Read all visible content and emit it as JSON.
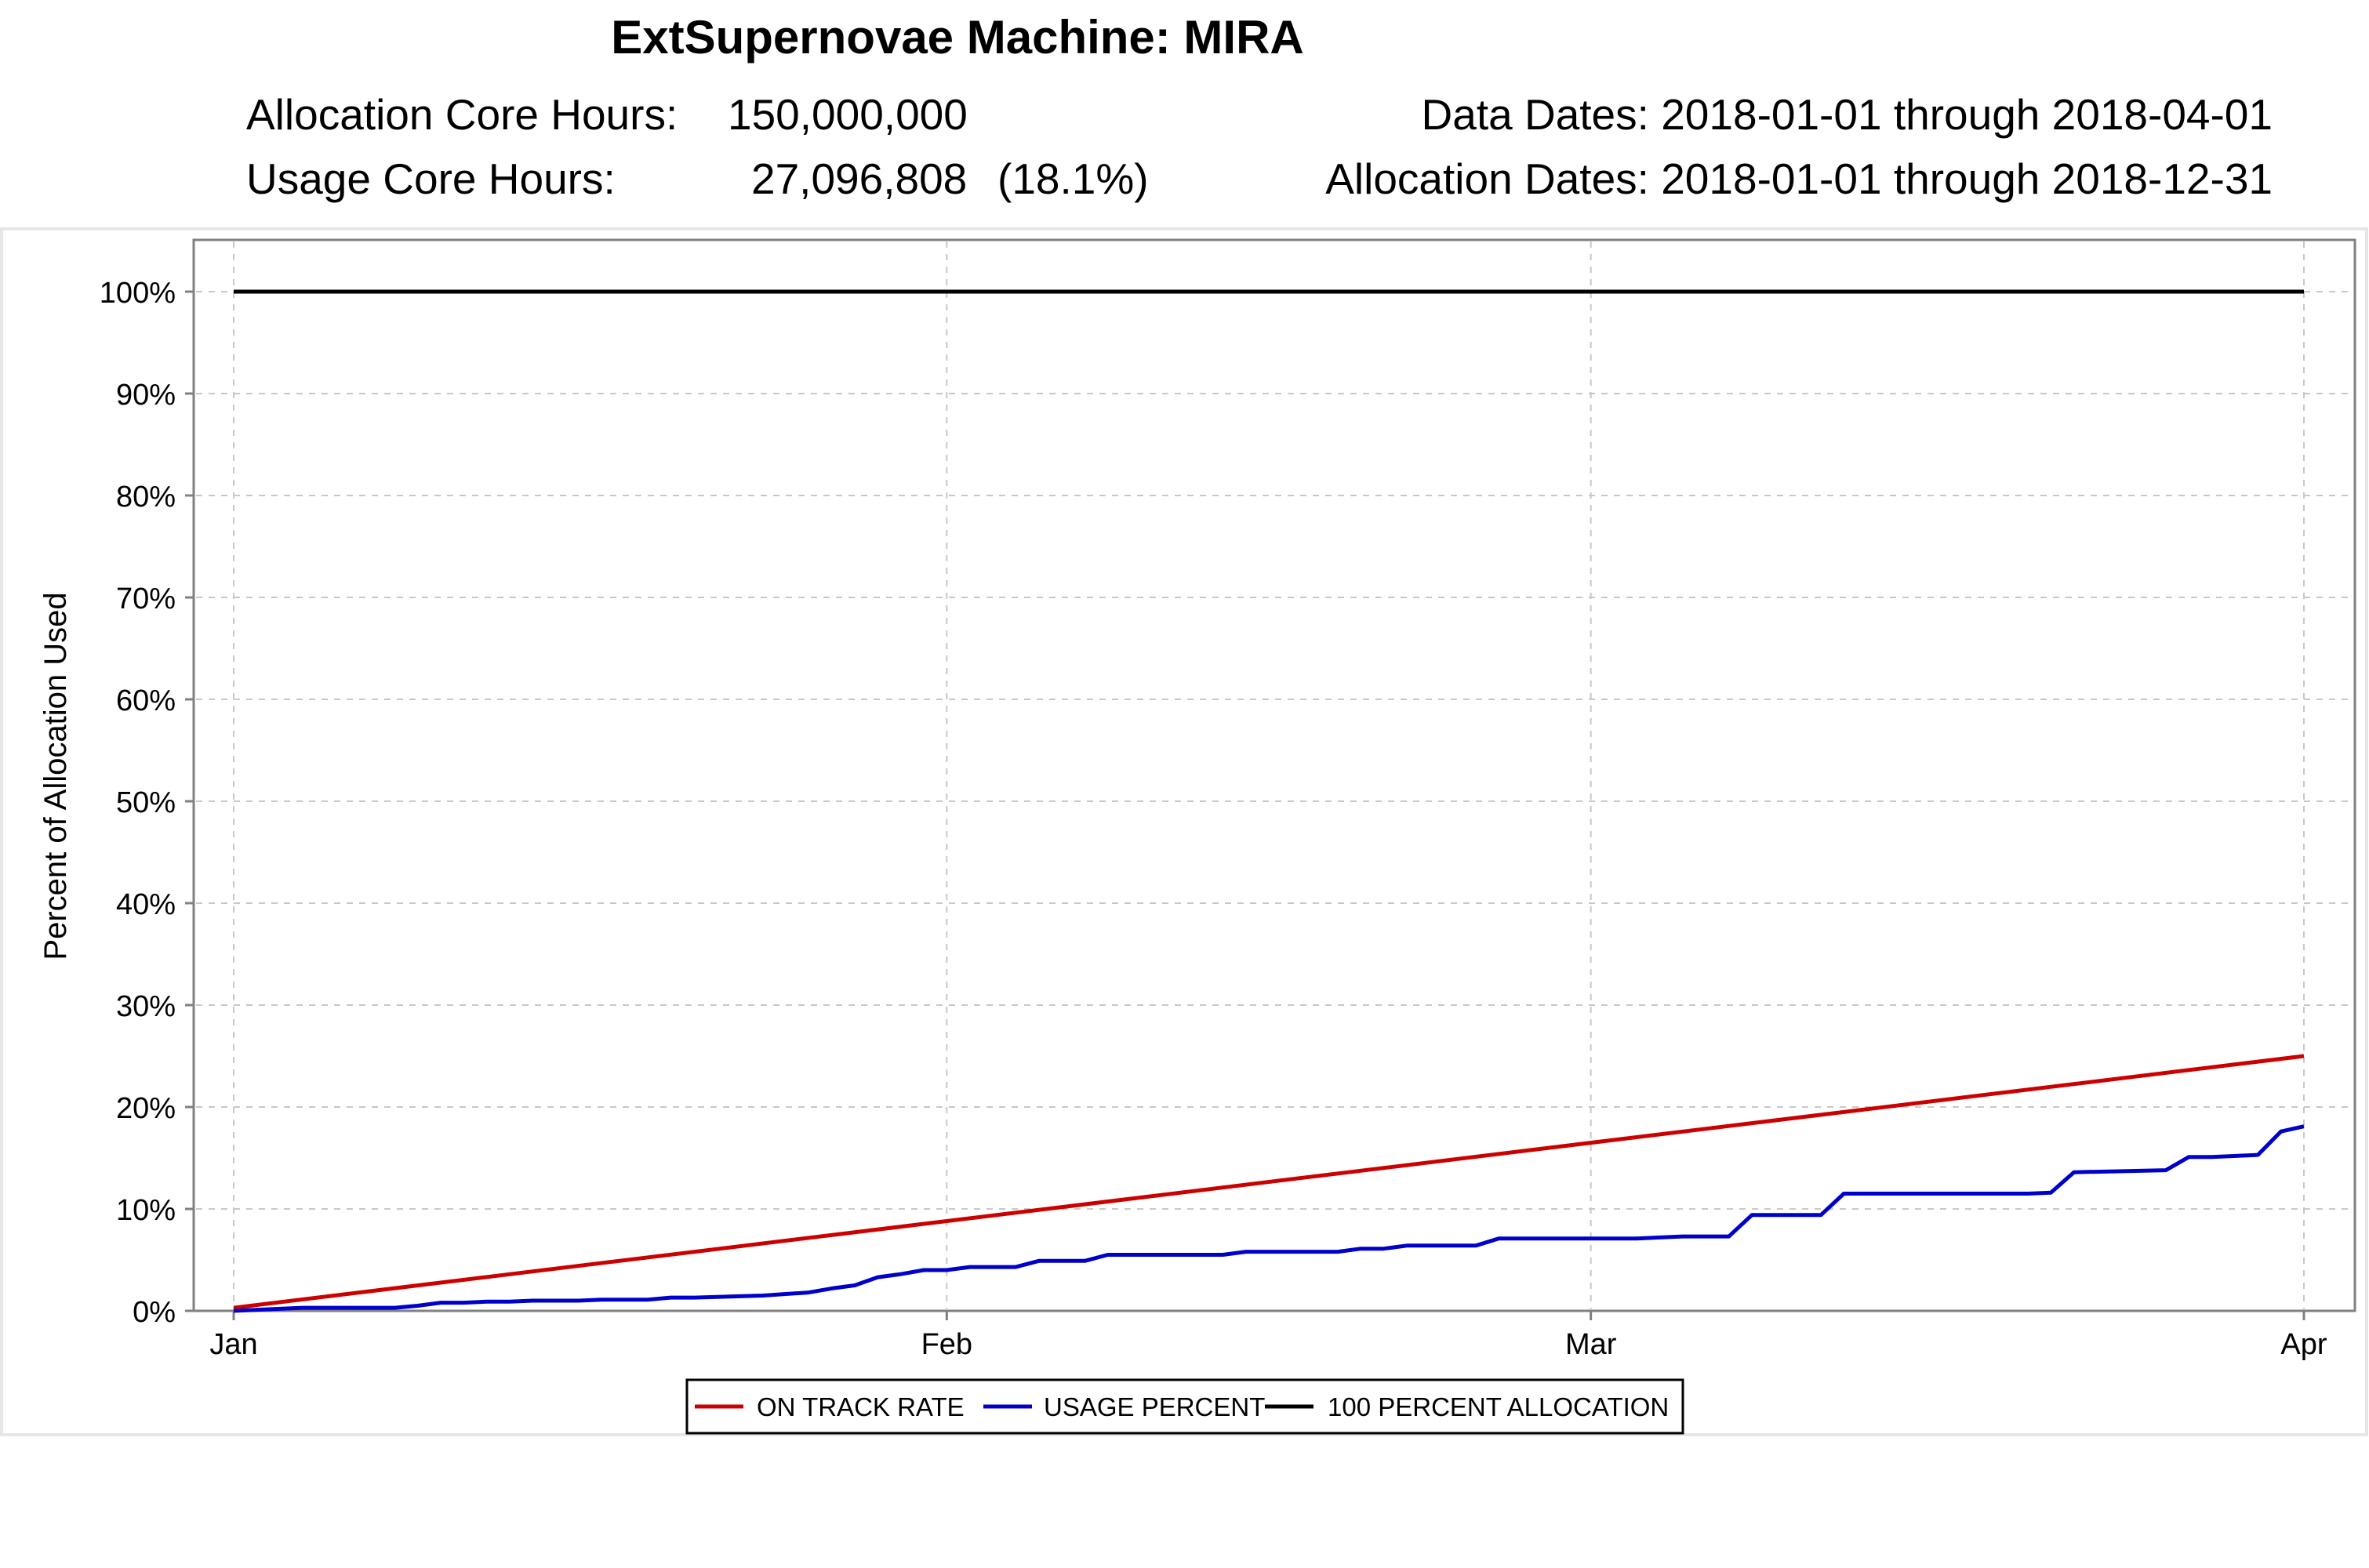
{
  "title": "ExtSupernovae  Machine: MIRA",
  "header": {
    "alloc_label": "Allocation Core Hours:",
    "alloc_value": "150,000,000",
    "usage_label": "Usage Core Hours:",
    "usage_value": "27,096,808",
    "usage_pct": "(18.1%)",
    "data_dates": "Data Dates: 2018-01-01 through 2018-04-01",
    "alloc_dates": "Allocation Dates: 2018-01-01 through 2018-12-31"
  },
  "colors": {
    "on_track": "#cc0000",
    "usage": "#0000cc",
    "full_allocation": "#000000",
    "grid": "#c8c8c8",
    "frame": "#808080"
  },
  "chart_data": {
    "type": "line",
    "ylabel": "Percent of Allocation Used",
    "xlabel": "",
    "ylim": [
      0,
      100
    ],
    "yticks": [
      "0%",
      "10%",
      "20%",
      "30%",
      "40%",
      "50%",
      "60%",
      "70%",
      "80%",
      "90%",
      "100%"
    ],
    "xlim": [
      "2018-01-01",
      "2018-04-01"
    ],
    "xticks": [
      "Jan",
      "Feb",
      "Mar",
      "Apr"
    ],
    "grid": true,
    "legend_position": "bottom-center",
    "series": [
      {
        "name": "ON TRACK RATE",
        "color": "#cc0000",
        "points": [
          [
            "2018-01-01",
            0.3
          ],
          [
            "2018-04-01",
            25.0
          ]
        ]
      },
      {
        "name": "USAGE PERCENT",
        "color": "#0000cc",
        "points": [
          [
            "2018-01-01",
            0.0
          ],
          [
            "2018-01-04",
            0.3
          ],
          [
            "2018-01-08",
            0.3
          ],
          [
            "2018-01-09",
            0.5
          ],
          [
            "2018-01-10",
            0.8
          ],
          [
            "2018-01-11",
            0.8
          ],
          [
            "2018-01-12",
            0.9
          ],
          [
            "2018-01-13",
            0.9
          ],
          [
            "2018-01-14",
            1.0
          ],
          [
            "2018-01-16",
            1.0
          ],
          [
            "2018-01-17",
            1.1
          ],
          [
            "2018-01-19",
            1.1
          ],
          [
            "2018-01-20",
            1.3
          ],
          [
            "2018-01-21",
            1.3
          ],
          [
            "2018-01-24",
            1.5
          ],
          [
            "2018-01-26",
            1.8
          ],
          [
            "2018-01-27",
            2.2
          ],
          [
            "2018-01-28",
            2.5
          ],
          [
            "2018-01-29",
            3.3
          ],
          [
            "2018-01-30",
            3.6
          ],
          [
            "2018-01-31",
            4.0
          ],
          [
            "2018-02-01",
            4.0
          ],
          [
            "2018-02-02",
            4.3
          ],
          [
            "2018-02-03",
            4.3
          ],
          [
            "2018-02-04",
            4.3
          ],
          [
            "2018-02-05",
            4.9
          ],
          [
            "2018-02-06",
            4.9
          ],
          [
            "2018-02-07",
            4.9
          ],
          [
            "2018-02-08",
            5.5
          ],
          [
            "2018-02-13",
            5.5
          ],
          [
            "2018-02-14",
            5.8
          ],
          [
            "2018-02-18",
            5.8
          ],
          [
            "2018-02-19",
            6.1
          ],
          [
            "2018-02-20",
            6.1
          ],
          [
            "2018-02-21",
            6.4
          ],
          [
            "2018-02-24",
            6.4
          ],
          [
            "2018-02-25",
            7.1
          ],
          [
            "2018-03-03",
            7.1
          ],
          [
            "2018-03-04",
            7.2
          ],
          [
            "2018-03-05",
            7.3
          ],
          [
            "2018-03-07",
            7.3
          ],
          [
            "2018-03-08",
            9.4
          ],
          [
            "2018-03-11",
            9.4
          ],
          [
            "2018-03-12",
            11.5
          ],
          [
            "2018-03-20",
            11.5
          ],
          [
            "2018-03-21",
            11.6
          ],
          [
            "2018-03-22",
            13.6
          ],
          [
            "2018-03-26",
            13.8
          ],
          [
            "2018-03-27",
            15.1
          ],
          [
            "2018-03-28",
            15.1
          ],
          [
            "2018-03-30",
            15.3
          ],
          [
            "2018-03-31",
            17.6
          ],
          [
            "2018-04-01",
            18.1
          ]
        ]
      },
      {
        "name": "100 PERCENT ALLOCATION",
        "color": "#000000",
        "points": [
          [
            "2018-01-01",
            100
          ],
          [
            "2018-04-01",
            100
          ]
        ]
      }
    ]
  }
}
